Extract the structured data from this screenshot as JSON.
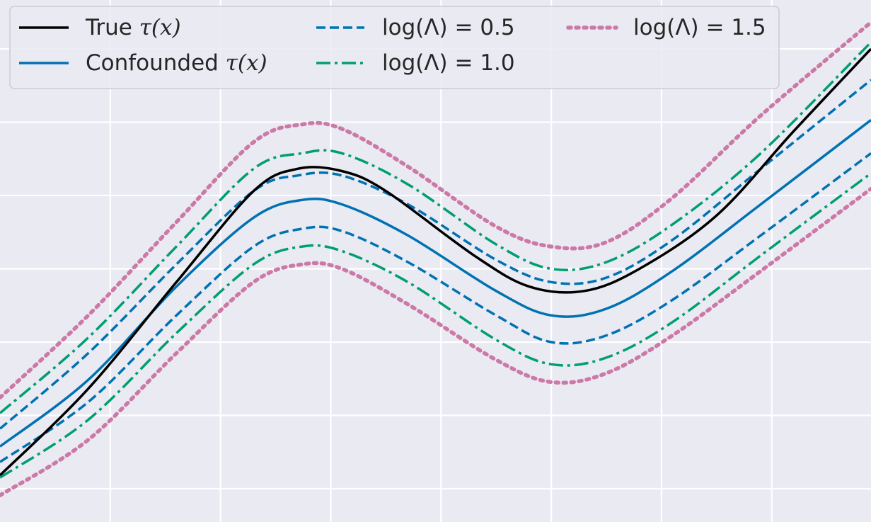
{
  "chart_data": {
    "type": "line",
    "xlim": [
      -2.35,
      1.6
    ],
    "ylim": [
      -1.2,
      1.15
    ],
    "grid": true,
    "x_ticks": [
      -1.85,
      -1.35,
      -0.85,
      -0.35,
      0.15,
      0.65,
      1.15
    ],
    "y_ticks": [
      -1.05,
      -0.72,
      -0.39,
      -0.06,
      0.27,
      0.6,
      0.93
    ],
    "legend": {
      "placement": "top-left",
      "columns": 3
    },
    "series": [
      {
        "name": "True",
        "name_math": "τ(x)",
        "color": "#000000",
        "style": "solid",
        "points": [
          [
            -2.35,
            -0.99
          ],
          [
            -1.95,
            -0.6
          ],
          [
            -1.55,
            -0.12
          ],
          [
            -1.2,
            0.29
          ],
          [
            -1.0,
            0.39
          ],
          [
            -0.8,
            0.38
          ],
          [
            -0.6,
            0.29
          ],
          [
            -0.2,
            0.0
          ],
          [
            0.05,
            -0.14
          ],
          [
            0.3,
            -0.16
          ],
          [
            0.55,
            -0.06
          ],
          [
            0.9,
            0.18
          ],
          [
            1.25,
            0.56
          ],
          [
            1.6,
            0.93
          ]
        ]
      },
      {
        "name": "Confounded",
        "name_math": "τ(x)",
        "color": "#0072b2",
        "style": "solid",
        "points": [
          [
            -2.35,
            -0.86
          ],
          [
            -1.95,
            -0.56
          ],
          [
            -1.55,
            -0.14
          ],
          [
            -1.2,
            0.17
          ],
          [
            -0.98,
            0.25
          ],
          [
            -0.8,
            0.23
          ],
          [
            -0.5,
            0.09
          ],
          [
            -0.1,
            -0.16
          ],
          [
            0.15,
            -0.27
          ],
          [
            0.4,
            -0.24
          ],
          [
            0.7,
            -0.07
          ],
          [
            1.1,
            0.23
          ],
          [
            1.6,
            0.61
          ]
        ]
      },
      {
        "name": "log(Λ) = 0.5",
        "color": "#0072b2",
        "style": "dashed",
        "points": [
          [
            -2.35,
            -0.78
          ],
          [
            -1.95,
            -0.44
          ],
          [
            -1.55,
            -0.04
          ],
          [
            -1.2,
            0.29
          ],
          [
            -1.0,
            0.36
          ],
          [
            -0.8,
            0.36
          ],
          [
            -0.5,
            0.23
          ],
          [
            -0.1,
            -0.02
          ],
          [
            0.15,
            -0.12
          ],
          [
            0.4,
            -0.1
          ],
          [
            0.7,
            0.07
          ],
          [
            1.1,
            0.39
          ],
          [
            1.6,
            0.79
          ]
        ]
      },
      {
        "name": "log(Λ) = 0.5",
        "color": "#0072b2",
        "style": "dashed",
        "points": [
          [
            -2.35,
            -0.93
          ],
          [
            -1.95,
            -0.66
          ],
          [
            -1.55,
            -0.27
          ],
          [
            -1.2,
            0.04
          ],
          [
            -0.98,
            0.12
          ],
          [
            -0.8,
            0.11
          ],
          [
            -0.5,
            -0.03
          ],
          [
            -0.1,
            -0.27
          ],
          [
            0.15,
            -0.39
          ],
          [
            0.4,
            -0.36
          ],
          [
            0.7,
            -0.2
          ],
          [
            1.1,
            0.09
          ],
          [
            1.6,
            0.46
          ]
        ]
      },
      {
        "name": "log(Λ) = 1.0",
        "color": "#009e73",
        "style": "dashdot",
        "points": [
          [
            -2.35,
            -0.71
          ],
          [
            -1.95,
            -0.37
          ],
          [
            -1.55,
            0.04
          ],
          [
            -1.2,
            0.39
          ],
          [
            -0.98,
            0.46
          ],
          [
            -0.8,
            0.46
          ],
          [
            -0.5,
            0.32
          ],
          [
            -0.1,
            0.05
          ],
          [
            0.15,
            -0.06
          ],
          [
            0.4,
            -0.03
          ],
          [
            0.7,
            0.14
          ],
          [
            1.1,
            0.46
          ],
          [
            1.6,
            0.96
          ]
        ]
      },
      {
        "name": "log(Λ) = 1.0",
        "color": "#009e73",
        "style": "dashdot",
        "points": [
          [
            -2.35,
            -1.0
          ],
          [
            -1.95,
            -0.74
          ],
          [
            -1.55,
            -0.35
          ],
          [
            -1.2,
            -0.04
          ],
          [
            -0.98,
            0.04
          ],
          [
            -0.8,
            0.02
          ],
          [
            -0.5,
            -0.12
          ],
          [
            -0.1,
            -0.38
          ],
          [
            0.15,
            -0.49
          ],
          [
            0.4,
            -0.46
          ],
          [
            0.7,
            -0.3
          ],
          [
            1.1,
            0.0
          ],
          [
            1.6,
            0.37
          ]
        ]
      },
      {
        "name": "log(Λ) = 1.5",
        "color": "#cc79a7",
        "style": "dotted",
        "points": [
          [
            -2.35,
            -0.64
          ],
          [
            -1.95,
            -0.27
          ],
          [
            -1.55,
            0.15
          ],
          [
            -1.2,
            0.51
          ],
          [
            -0.98,
            0.59
          ],
          [
            -0.8,
            0.57
          ],
          [
            -0.5,
            0.4
          ],
          [
            -0.1,
            0.13
          ],
          [
            0.15,
            0.04
          ],
          [
            0.4,
            0.06
          ],
          [
            0.7,
            0.26
          ],
          [
            1.1,
            0.63
          ],
          [
            1.6,
            1.05
          ]
        ]
      },
      {
        "name": "log(Λ) = 1.5",
        "color": "#cc79a7",
        "style": "dotted",
        "points": [
          [
            -2.35,
            -1.08
          ],
          [
            -1.95,
            -0.83
          ],
          [
            -1.55,
            -0.44
          ],
          [
            -1.2,
            -0.12
          ],
          [
            -0.98,
            -0.04
          ],
          [
            -0.8,
            -0.06
          ],
          [
            -0.5,
            -0.22
          ],
          [
            -0.1,
            -0.47
          ],
          [
            0.15,
            -0.57
          ],
          [
            0.4,
            -0.53
          ],
          [
            0.7,
            -0.36
          ],
          [
            1.1,
            -0.07
          ],
          [
            1.6,
            0.3
          ]
        ]
      }
    ]
  }
}
